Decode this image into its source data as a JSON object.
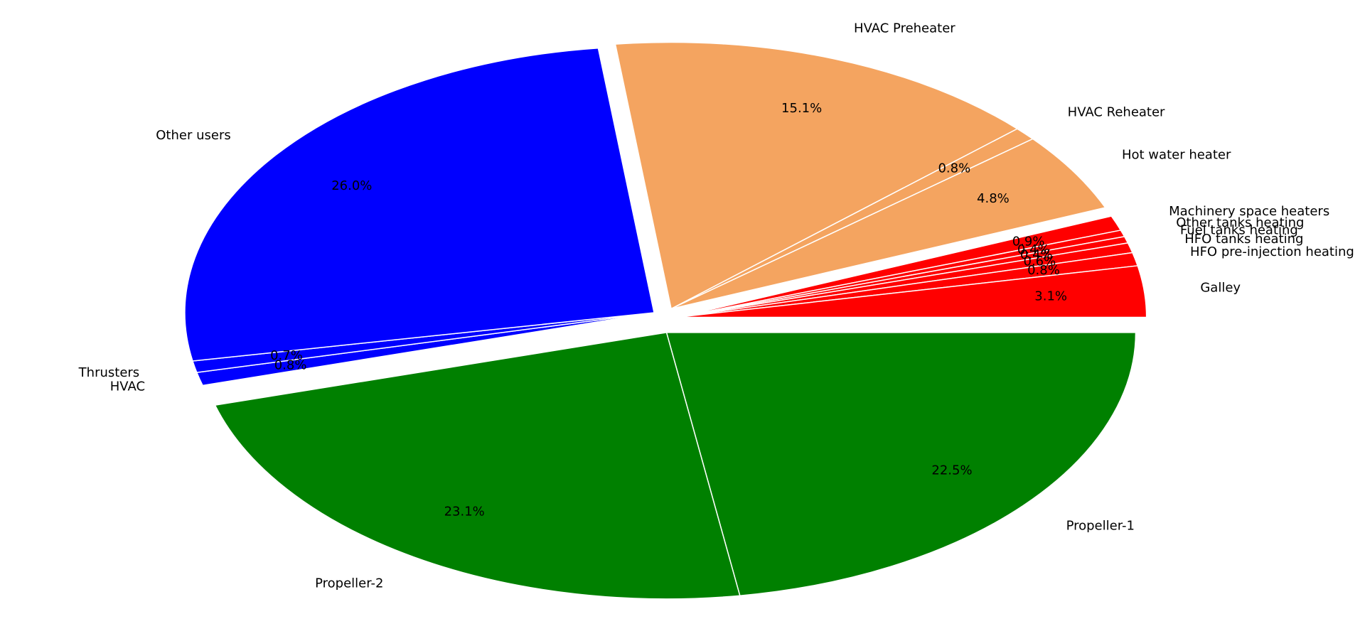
{
  "chart_data": {
    "type": "pie",
    "slices": [
      {
        "label": "Propeller-1",
        "value": 22.5,
        "pct_label": "22.5%",
        "color": "#008000",
        "group": "propulsion"
      },
      {
        "label": "Propeller-2",
        "value": 23.1,
        "pct_label": "23.1%",
        "color": "#008000",
        "group": "propulsion"
      },
      {
        "label": "HVAC",
        "value": 0.8,
        "pct_label": "0.8%",
        "color": "#0000ff",
        "group": "electric"
      },
      {
        "label": "Thrusters",
        "value": 0.7,
        "pct_label": "0.7%",
        "color": "#0000ff",
        "group": "electric"
      },
      {
        "label": "Other users",
        "value": 26.0,
        "pct_label": "26.0%",
        "color": "#0000ff",
        "group": "electric"
      },
      {
        "label": "HVAC Preheater",
        "value": 15.1,
        "pct_label": "15.1%",
        "color": "#f4a460",
        "group": "heat"
      },
      {
        "label": "HVAC Reheater",
        "value": 0.8,
        "pct_label": "0.8%",
        "color": "#f4a460",
        "group": "heat"
      },
      {
        "label": "Hot water heater",
        "value": 4.8,
        "pct_label": "4.8%",
        "color": "#f4a460",
        "group": "heat"
      },
      {
        "label": "Machinery space heaters",
        "value": 0.9,
        "pct_label": "0.9%",
        "color": "#ff0000",
        "group": "fuel"
      },
      {
        "label": "Other tanks heating",
        "value": 0.4,
        "pct_label": "0.4%",
        "color": "#ff0000",
        "group": "fuel"
      },
      {
        "label": "Fuel tanks heating",
        "value": 0.4,
        "pct_label": "0.4%",
        "color": "#ff0000",
        "group": "fuel"
      },
      {
        "label": "HFO tanks heating",
        "value": 0.6,
        "pct_label": "0.6%",
        "color": "#ff0000",
        "group": "fuel"
      },
      {
        "label": "HFO pre-injection heating",
        "value": 0.8,
        "pct_label": "0.8%",
        "color": "#ff0000",
        "group": "fuel"
      },
      {
        "label": "Galley",
        "value": 3.1,
        "pct_label": "3.1%",
        "color": "#ff0000",
        "group": "fuel"
      }
    ],
    "order": "clockwise from 0 degrees (3 o'clock)",
    "exploded": true,
    "legend": "none"
  }
}
